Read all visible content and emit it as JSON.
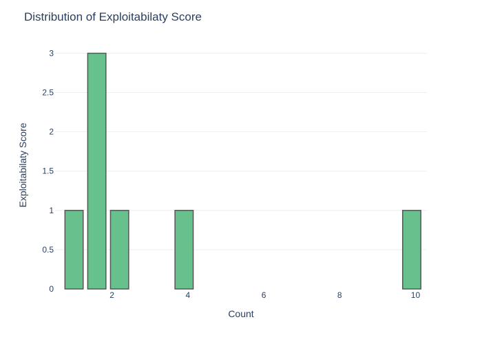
{
  "chart_data": {
    "type": "bar",
    "title": "Distribution of Exploitabilaty Score",
    "xlabel": "Count",
    "ylabel": "Exploitabilaty Score",
    "x": [
      1,
      1.6,
      2.2,
      3.9,
      9.9
    ],
    "values": [
      1,
      3,
      1,
      1,
      1
    ],
    "bar_width": 0.48,
    "xlim": [
      0.5,
      10.3
    ],
    "ylim": [
      0,
      3.1
    ],
    "xticks": [
      2,
      4,
      6,
      8,
      10
    ],
    "yticks": [
      0,
      0.5,
      1,
      1.5,
      2,
      2.5,
      3
    ],
    "ytick_labels": [
      "0",
      "0.5",
      "1",
      "1.5",
      "2",
      "2.5",
      "3"
    ],
    "bar_color": "#66c18c",
    "bar_edge_color": "#555555",
    "grid": true
  }
}
